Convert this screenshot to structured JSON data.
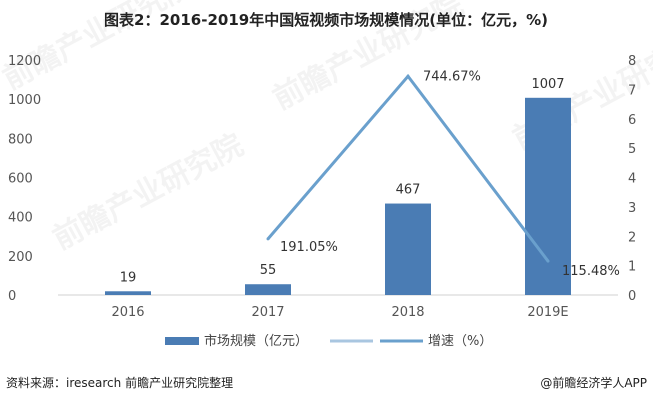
{
  "chart_data": {
    "type": "bar",
    "title": "图表2：2016-2019年中国短视频市场规模情况(单位：亿元，%)",
    "categories": [
      "2016",
      "2017",
      "2018",
      "2019E"
    ],
    "ylim": [
      0,
      1200
    ],
    "y_ticks": [
      "0",
      "200",
      "400",
      "600",
      "800",
      "1000",
      "1200"
    ],
    "y2lim": [
      0,
      8
    ],
    "y2_ticks": [
      "0",
      "1",
      "2",
      "3",
      "4",
      "5",
      "6",
      "7",
      "8"
    ],
    "series": [
      {
        "name": "市场规模（亿元）",
        "type": "bar",
        "axis": "left",
        "values": [
          19,
          55,
          467,
          1007
        ],
        "labels": [
          "19",
          "55",
          "467",
          "1007"
        ],
        "color": "#4a7cb4"
      },
      {
        "name": "增速（%）",
        "type": "line",
        "axis": "right",
        "values": [
          null,
          1.9105,
          7.4467,
          1.1548
        ],
        "labels": [
          "",
          "191.05%",
          "744.67%",
          "115.48%"
        ],
        "color": "#6aa0cd"
      }
    ],
    "legend": {
      "position": "bottom",
      "items": [
        "市场规模（亿元）",
        "",
        "增速（%）"
      ],
      "colors": [
        "#4a7cb4",
        "#a9c6e0",
        "#6aa0cd"
      ]
    },
    "grid": false
  },
  "footer": {
    "source": "资料来源：iresearch 前瞻产业研究院整理",
    "brand": "@前瞻经济学人APP"
  },
  "watermark": "前瞻产业研究院"
}
